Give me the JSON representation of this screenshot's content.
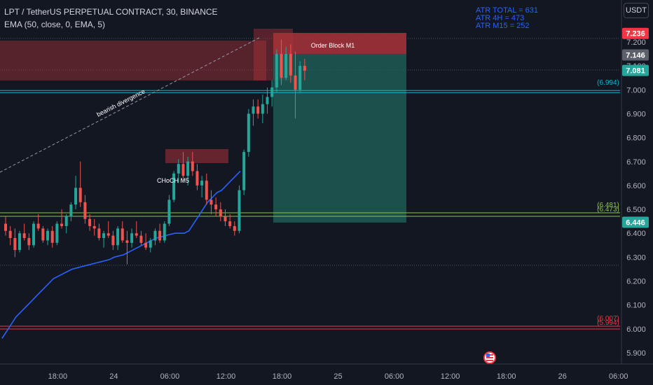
{
  "header": {
    "symbol_line": "LPT / TetherUS PERPETUAL CONTRACT, 30, BINANCE",
    "indicator_line": "EMA (50, close, 0, EMA, 5)"
  },
  "atr": [
    "ATR TOTAL = 631",
    "ATR 4H = 473",
    "ATR M15 = 252"
  ],
  "currency_button": "USDT",
  "colors": {
    "background": "#131722",
    "up": "#26a69a",
    "down": "#ef5350",
    "ema": "#2962ff",
    "text": "#b2b5be",
    "grid": "#363a45",
    "cyan_line": "#00bcd4",
    "green_line": "#8bc34a",
    "red_line": "#f23645",
    "order_block": "#a8323a",
    "target_zone": "#1e5f57"
  },
  "chart_data": {
    "type": "candlestick",
    "symbol": "LPT / TetherUS PERPETUAL CONTRACT",
    "interval": "30",
    "exchange": "BINANCE",
    "ylim": [
      5.87,
      7.28
    ],
    "y_ticks": [
      "7.200",
      "7.100",
      "7.000",
      "6.900",
      "6.800",
      "6.700",
      "6.600",
      "6.500",
      "6.400",
      "6.300",
      "6.200",
      "6.100",
      "6.000",
      "5.900"
    ],
    "x_ticks": [
      {
        "label": "18:00",
        "bar": 8
      },
      {
        "label": "24",
        "bar": 20
      },
      {
        "label": "06:00",
        "bar": 32
      },
      {
        "label": "12:00",
        "bar": 44
      },
      {
        "label": "18:00",
        "bar": 56
      },
      {
        "label": "25",
        "bar": 68
      },
      {
        "label": "06:00",
        "bar": 80
      },
      {
        "label": "12:00",
        "bar": 92
      },
      {
        "label": "18:00",
        "bar": 104
      },
      {
        "label": "26",
        "bar": 116
      },
      {
        "label": "06:00",
        "bar": 128
      }
    ],
    "candles": [
      [
        6.44,
        6.47,
        6.39,
        6.41
      ],
      [
        6.41,
        6.43,
        6.35,
        6.38
      ],
      [
        6.38,
        6.42,
        6.3,
        6.33
      ],
      [
        6.33,
        6.41,
        6.32,
        6.4
      ],
      [
        6.4,
        6.44,
        6.37,
        6.38
      ],
      [
        6.38,
        6.4,
        6.33,
        6.35
      ],
      [
        6.35,
        6.45,
        6.34,
        6.44
      ],
      [
        6.44,
        6.48,
        6.41,
        6.42
      ],
      [
        6.42,
        6.43,
        6.36,
        6.37
      ],
      [
        6.37,
        6.42,
        6.35,
        6.41
      ],
      [
        6.41,
        6.43,
        6.34,
        6.36
      ],
      [
        6.36,
        6.45,
        6.35,
        6.44
      ],
      [
        6.44,
        6.5,
        6.42,
        6.43
      ],
      [
        6.43,
        6.48,
        6.4,
        6.47
      ],
      [
        6.47,
        6.53,
        6.45,
        6.52
      ],
      [
        6.52,
        6.64,
        6.5,
        6.59
      ],
      [
        6.59,
        6.7,
        6.51,
        6.53
      ],
      [
        6.53,
        6.56,
        6.44,
        6.46
      ],
      [
        6.46,
        6.48,
        6.41,
        6.43
      ],
      [
        6.43,
        6.46,
        6.39,
        6.42
      ],
      [
        6.42,
        6.44,
        6.37,
        6.38
      ],
      [
        6.38,
        6.41,
        6.34,
        6.4
      ],
      [
        6.4,
        6.45,
        6.38,
        6.39
      ],
      [
        6.39,
        6.41,
        6.33,
        6.35
      ],
      [
        6.35,
        6.43,
        6.33,
        6.42
      ],
      [
        6.42,
        6.45,
        6.36,
        6.37
      ],
      [
        6.37,
        6.41,
        6.27,
        6.36
      ],
      [
        6.36,
        6.42,
        6.34,
        6.4
      ],
      [
        6.4,
        6.45,
        6.38,
        6.39
      ],
      [
        6.39,
        6.41,
        6.35,
        6.36
      ],
      [
        6.36,
        6.4,
        6.33,
        6.34
      ],
      [
        6.34,
        6.38,
        6.32,
        6.37
      ],
      [
        6.37,
        6.42,
        6.35,
        6.41
      ],
      [
        6.41,
        6.44,
        6.36,
        6.37
      ],
      [
        6.37,
        6.45,
        6.36,
        6.44
      ],
      [
        6.44,
        6.56,
        6.43,
        6.54
      ],
      [
        6.54,
        6.66,
        6.53,
        6.65
      ],
      [
        6.65,
        6.71,
        6.61,
        6.69
      ],
      [
        6.69,
        6.74,
        6.62,
        6.64
      ],
      [
        6.64,
        6.72,
        6.6,
        6.7
      ],
      [
        6.7,
        6.74,
        6.64,
        6.66
      ],
      [
        6.66,
        6.69,
        6.58,
        6.6
      ],
      [
        6.6,
        6.64,
        6.55,
        6.62
      ],
      [
        6.62,
        6.65,
        6.52,
        6.54
      ],
      [
        6.54,
        6.58,
        6.48,
        6.52
      ],
      [
        6.52,
        6.55,
        6.47,
        6.5
      ],
      [
        6.5,
        6.53,
        6.45,
        6.47
      ],
      [
        6.47,
        6.5,
        6.43,
        6.45
      ],
      [
        6.45,
        6.48,
        6.42,
        6.43
      ],
      [
        6.43,
        6.45,
        6.39,
        6.41
      ],
      [
        6.41,
        6.6,
        6.4,
        6.58
      ],
      [
        6.58,
        6.75,
        6.56,
        6.74
      ],
      [
        6.74,
        6.92,
        6.72,
        6.9
      ],
      [
        6.9,
        6.96,
        6.85,
        6.93
      ],
      [
        6.93,
        6.96,
        6.88,
        6.9
      ],
      [
        6.9,
        6.98,
        6.86,
        6.94
      ],
      [
        6.94,
        7.01,
        6.9,
        6.97
      ],
      [
        6.97,
        7.04,
        6.93,
        7.01
      ],
      [
        7.01,
        7.17,
        6.99,
        7.15
      ],
      [
        7.15,
        7.21,
        7.02,
        7.05
      ],
      [
        7.05,
        7.18,
        7.04,
        7.15
      ],
      [
        7.15,
        7.19,
        7.03,
        7.06
      ],
      [
        7.06,
        7.16,
        6.88,
        7.0
      ],
      [
        7.0,
        7.12,
        6.99,
        7.1
      ],
      [
        7.1,
        7.13,
        7.04,
        7.08
      ]
    ],
    "ema_series": {
      "name": "EMA (50, close, 0, EMA, 5)",
      "start_bar": -1,
      "values": [
        5.96,
        5.99,
        6.02,
        6.05,
        6.07,
        6.09,
        6.11,
        6.13,
        6.15,
        6.17,
        6.19,
        6.21,
        6.22,
        6.23,
        6.24,
        6.25,
        6.255,
        6.26,
        6.265,
        6.27,
        6.275,
        6.28,
        6.285,
        6.29,
        6.3,
        6.305,
        6.31,
        6.32,
        6.33,
        6.34,
        6.35,
        6.36,
        6.37,
        6.38,
        6.385,
        6.39,
        6.395,
        6.4,
        6.4,
        6.4,
        6.41,
        6.44,
        6.47,
        6.5,
        6.53,
        6.55,
        6.57,
        6.58,
        6.6,
        6.62,
        6.64,
        6.66
      ]
    },
    "annotations": {
      "order_block_label": "Order Block M1",
      "choch_label": "CHoCH M5",
      "divergence_label": "bearish divergence"
    },
    "levels": [
      {
        "name": "cyan-level",
        "y": 6.994,
        "label": "(6.994)",
        "color": "#00bcd4"
      },
      {
        "name": "green-level",
        "y": 6.473,
        "label": "(6.481)",
        "label2": "(6.473)",
        "color": "#8bc34a"
      },
      {
        "name": "red-level",
        "y": 6.0,
        "label": "(6.007)",
        "label2": "(5.994)",
        "color": "#f23645"
      }
    ],
    "price_labels": [
      {
        "name": "level-label-7236",
        "text": "7.236",
        "y": 7.236,
        "bg": "#f23645"
      },
      {
        "name": "level-label-7146",
        "text": "7.146",
        "y": 7.146,
        "bg": "#5d606b"
      },
      {
        "name": "level-label-7081",
        "text": "7.081",
        "y": 7.081,
        "bg": "#26a69a"
      },
      {
        "name": "level-label-6446",
        "text": "6.446",
        "y": 6.446,
        "bg": "#26a69a"
      }
    ]
  }
}
